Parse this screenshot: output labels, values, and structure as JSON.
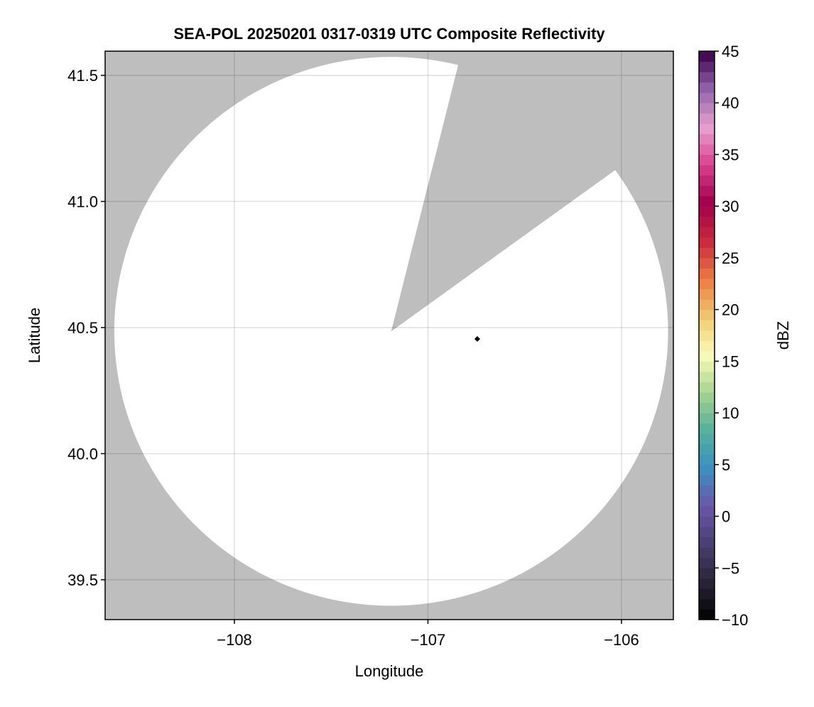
{
  "chart_data": {
    "type": "heatmap",
    "title": "SEA-POL 20250201 0317-0319 UTC Composite Reflectivity",
    "xlabel": "Longitude",
    "ylabel": "Latitude",
    "xlim": [
      -108.668,
      -105.732
    ],
    "ylim": [
      39.342,
      41.596
    ],
    "xticks": [
      -108,
      -107,
      -106
    ],
    "xtick_labels": [
      "−108",
      "−107",
      "−106"
    ],
    "yticks": [
      39.5,
      40.0,
      40.5,
      41.0,
      41.5
    ],
    "ytick_labels": [
      "39.5",
      "40.0",
      "40.5",
      "41.0",
      "41.5"
    ],
    "grid": true,
    "missing_color": "#bebebe",
    "no_echo_color": "#ffffff",
    "radar": {
      "lon": -107.19,
      "lat": 40.485,
      "max_range_km": 121,
      "blocked_sector_azimuth_deg": [
        14,
        54
      ]
    },
    "marker": {
      "lon": -106.745,
      "lat": 40.455,
      "color": "#000000"
    },
    "colorbar": {
      "label": "dBZ",
      "range": [
        -10,
        45
      ],
      "step": 1,
      "ticks": [
        -10,
        -5,
        0,
        5,
        10,
        15,
        20,
        25,
        30,
        35,
        40,
        45
      ],
      "tick_labels": [
        "−10",
        "−5",
        "0",
        "5",
        "10",
        "15",
        "20",
        "25",
        "30",
        "35",
        "40",
        "45"
      ],
      "colormap_anchors": [
        "#000000",
        "#2a2438",
        "#4a3f72",
        "#6a56a8",
        "#3d8fc0",
        "#55b09a",
        "#a6d490",
        "#fbfbb8",
        "#f0c870",
        "#ec7a44",
        "#c8283e",
        "#a0004c",
        "#d8408e",
        "#e6a2cf",
        "#9262ac",
        "#3a0048"
      ]
    }
  }
}
